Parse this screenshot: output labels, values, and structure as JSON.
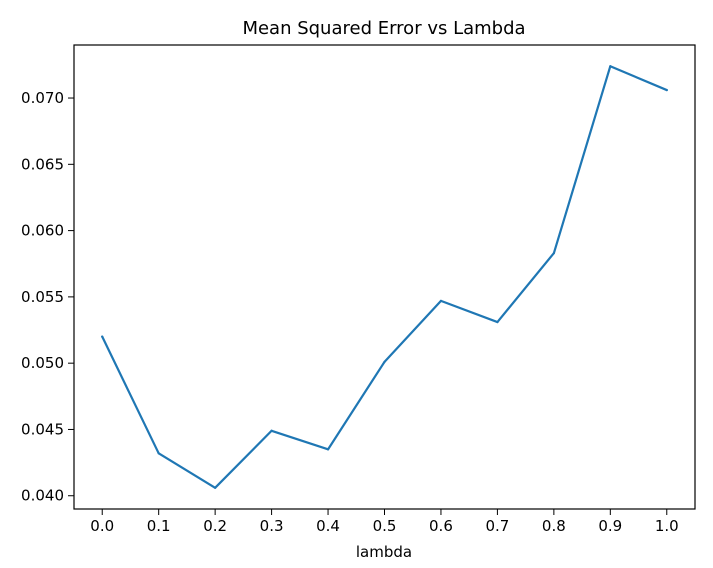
{
  "chart_data": {
    "type": "line",
    "title": "Mean Squared Error vs Lambda",
    "xlabel": "lambda",
    "ylabel": "",
    "x": [
      0.0,
      0.1,
      0.2,
      0.3,
      0.4,
      0.5,
      0.6,
      0.7,
      0.8,
      0.9,
      1.0
    ],
    "x_tick_labels": [
      "0.0",
      "0.1",
      "0.2",
      "0.3",
      "0.4",
      "0.5",
      "0.6",
      "0.7",
      "0.8",
      "0.9",
      "1.0"
    ],
    "series": [
      {
        "values": [
          0.052,
          0.0432,
          0.0406,
          0.0449,
          0.0435,
          0.0501,
          0.0547,
          0.0531,
          0.0583,
          0.0724,
          0.0706
        ],
        "color": "#1f77b4"
      }
    ],
    "y_ticks": [
      0.04,
      0.045,
      0.05,
      0.055,
      0.06,
      0.065,
      0.07
    ],
    "y_tick_labels": [
      "0.040",
      "0.045",
      "0.050",
      "0.055",
      "0.060",
      "0.065",
      "0.070"
    ],
    "xlim": [
      -0.05,
      1.05
    ],
    "ylim": [
      0.039,
      0.074
    ],
    "grid": false,
    "legend": "none"
  }
}
